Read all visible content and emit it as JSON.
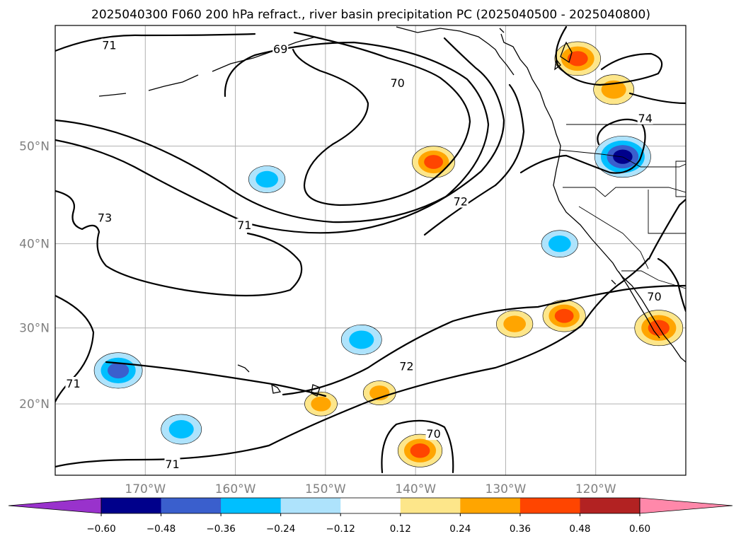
{
  "title": "2025040300 F060 200 hPa refract., river basin precipitation PC (2025040500 - 2025040800)",
  "map": {
    "projection": "Mercator",
    "lon_range": [
      -180,
      -110
    ],
    "lat_range": [
      10,
      60
    ],
    "grid": true,
    "lat_ticks": [
      {
        "lat": 50,
        "label": "50°N"
      },
      {
        "lat": 40,
        "label": "40°N"
      },
      {
        "lat": 30,
        "label": "30°N"
      },
      {
        "lat": 20,
        "label": "20°N"
      }
    ],
    "lon_ticks": [
      {
        "lon": -170,
        "label": "170°W"
      },
      {
        "lon": -160,
        "label": "160°W"
      },
      {
        "lon": -150,
        "label": "150°W"
      },
      {
        "lon": -140,
        "label": "140°W"
      },
      {
        "lon": -130,
        "label": "130°W"
      },
      {
        "lon": -120,
        "label": "120°W"
      }
    ],
    "contour_labels": [
      {
        "text": "71",
        "lon": -174,
        "lat": 58.5
      },
      {
        "text": "69",
        "lon": -155,
        "lat": 58.2
      },
      {
        "text": "70",
        "lon": -142,
        "lat": 55.5
      },
      {
        "text": "74",
        "lon": -114.5,
        "lat": 52.5
      },
      {
        "text": "73",
        "lon": -174.5,
        "lat": 42.8
      },
      {
        "text": "71",
        "lon": -159,
        "lat": 42.0
      },
      {
        "text": "72",
        "lon": -135,
        "lat": 44.5
      },
      {
        "text": "70",
        "lon": -113.5,
        "lat": 33.8
      },
      {
        "text": "72",
        "lon": -141,
        "lat": 25.0
      },
      {
        "text": "71",
        "lon": -178,
        "lat": 22.7
      },
      {
        "text": "70",
        "lon": -138,
        "lat": 15.8
      },
      {
        "text": "71",
        "lon": -167,
        "lat": 11.5
      }
    ]
  },
  "chart_data": {
    "type": "heatmap",
    "field": "river basin precipitation PC",
    "contour_field": "200 hPa refract.",
    "contour_levels": [
      69,
      70,
      71,
      72,
      73,
      74
    ],
    "colorbar": {
      "levels": [
        -0.6,
        -0.48,
        -0.36,
        -0.24,
        -0.12,
        0.12,
        0.24,
        0.36,
        0.48,
        0.6
      ],
      "tick_labels": [
        "−0.60",
        "−0.48",
        "−0.36",
        "−0.24",
        "−0.12",
        "0.12",
        "0.24",
        "0.36",
        "0.48",
        "0.60"
      ],
      "colors": [
        "#9932cc",
        "#00008b",
        "#3a5fcd",
        "#00bfff",
        "#aee3fc",
        "#ffffff",
        "#fde68a",
        "#ffa500",
        "#ff4500",
        "#b22222",
        "#ff88aa"
      ],
      "extend": "both"
    },
    "anomalies": [
      {
        "lon": -117,
        "lat": 49,
        "value": -0.55
      },
      {
        "lon": -113,
        "lat": 30,
        "value": 0.45
      },
      {
        "lon": -122,
        "lat": 57.5,
        "value": 0.42
      },
      {
        "lon": -118,
        "lat": 55,
        "value": 0.35
      },
      {
        "lon": -138,
        "lat": 48.5,
        "value": 0.38
      },
      {
        "lon": -123.5,
        "lat": 31.5,
        "value": 0.38
      },
      {
        "lon": -129,
        "lat": 30.5,
        "value": 0.3
      },
      {
        "lon": -124,
        "lat": 40,
        "value": -0.3
      },
      {
        "lon": -173,
        "lat": 24.5,
        "value": -0.45
      },
      {
        "lon": -166,
        "lat": 16.5,
        "value": -0.35
      },
      {
        "lon": -156.5,
        "lat": 46.8,
        "value": -0.3
      },
      {
        "lon": -146,
        "lat": 28.5,
        "value": -0.35
      },
      {
        "lon": -139.5,
        "lat": 13.5,
        "value": 0.4
      },
      {
        "lon": -144,
        "lat": 21.5,
        "value": 0.25
      },
      {
        "lon": -150.5,
        "lat": 20,
        "value": 0.25
      }
    ]
  }
}
